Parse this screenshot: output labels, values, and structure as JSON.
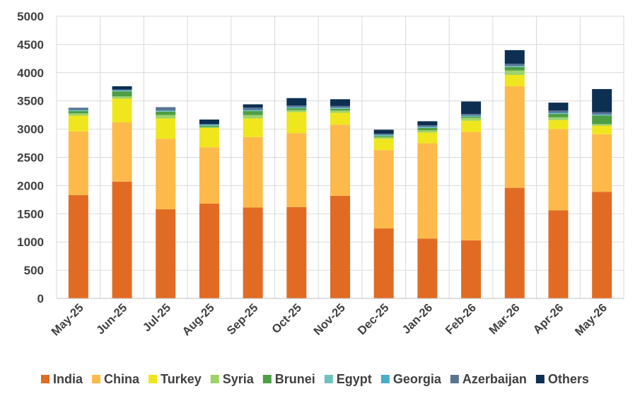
{
  "chart_data": {
    "type": "bar",
    "stacked": true,
    "title": "",
    "xlabel": "",
    "ylabel": "",
    "ylim": [
      0,
      5000
    ],
    "yticks": [
      0,
      500,
      1000,
      1500,
      2000,
      2500,
      3000,
      3500,
      4000,
      4500,
      5000
    ],
    "grid": true,
    "legend_position": "bottom",
    "categories": [
      "May-25",
      "Jun-25",
      "Jul-25",
      "Aug-25",
      "Sep-25",
      "Oct-25",
      "Nov-25",
      "Dec-25",
      "Jan-26",
      "Feb-26",
      "Mar-26",
      "Apr-26",
      "May-26"
    ],
    "series": [
      {
        "name": "India",
        "color": "#E26B24",
        "values": [
          1830,
          2070,
          1580,
          1680,
          1610,
          1620,
          1820,
          1240,
          1060,
          1030,
          1960,
          1560,
          1890
        ]
      },
      {
        "name": "China",
        "color": "#FDBA4A",
        "values": [
          1130,
          1050,
          1250,
          1000,
          1250,
          1310,
          1260,
          1390,
          1690,
          1920,
          1800,
          1440,
          1020
        ]
      },
      {
        "name": "Turkey",
        "color": "#F0E61E",
        "values": [
          280,
          420,
          360,
          340,
          330,
          370,
          210,
          200,
          190,
          200,
          200,
          160,
          150
        ]
      },
      {
        "name": "Syria",
        "color": "#9DD36A",
        "values": [
          40,
          40,
          60,
          20,
          60,
          40,
          40,
          30,
          40,
          50,
          80,
          50,
          30
        ]
      },
      {
        "name": "Brunei",
        "color": "#4E9E43",
        "values": [
          40,
          90,
          60,
          20,
          70,
          30,
          30,
          20,
          40,
          20,
          60,
          60,
          150
        ]
      },
      {
        "name": "Egypt",
        "color": "#6EC2BE",
        "values": [
          10,
          10,
          10,
          10,
          10,
          10,
          10,
          10,
          10,
          10,
          10,
          10,
          10
        ]
      },
      {
        "name": "Georgia",
        "color": "#4AACC6",
        "values": [
          10,
          10,
          10,
          10,
          10,
          10,
          10,
          10,
          10,
          10,
          10,
          10,
          10
        ]
      },
      {
        "name": "Azerbaijan",
        "color": "#5A7393",
        "values": [
          40,
          10,
          60,
          10,
          40,
          30,
          30,
          20,
          30,
          30,
          40,
          40,
          40
        ]
      },
      {
        "name": "Others",
        "color": "#0D2F52",
        "values": [
          0,
          60,
          0,
          80,
          60,
          130,
          120,
          70,
          70,
          220,
          240,
          140,
          410
        ]
      }
    ]
  }
}
